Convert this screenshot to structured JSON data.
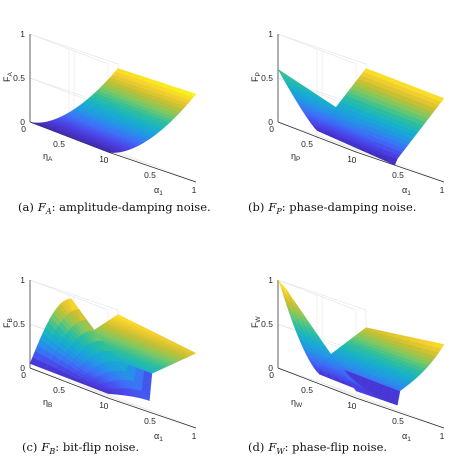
{
  "panels": [
    {
      "id": "a",
      "caption": {
        "tag": "(a)",
        "sym": "F",
        "sub": "A",
        "text": ":  amplitude-damping noise."
      },
      "zlabel": {
        "main": "F",
        "sub": "A"
      },
      "eta_label": {
        "main": "η",
        "sub": "A"
      },
      "alpha_label": {
        "main": "α",
        "sub": "1"
      },
      "z_ticks": [
        "0",
        "0.5",
        "1"
      ],
      "eta_ticks": [
        "0",
        "0.5",
        "1"
      ],
      "alpha_ticks": [
        "0",
        "0.5",
        "1"
      ]
    },
    {
      "id": "b",
      "caption": {
        "tag": "(b)",
        "sym": "F",
        "sub": "P",
        "text": ":  phase-damping noise."
      },
      "zlabel": {
        "main": "F",
        "sub": "P"
      },
      "eta_label": {
        "main": "η",
        "sub": "P"
      },
      "alpha_label": {
        "main": "α",
        "sub": "1"
      },
      "z_ticks": [
        "0",
        "0.5",
        "1"
      ],
      "eta_ticks": [
        "0",
        "0.5",
        "1"
      ],
      "alpha_ticks": [
        "0",
        "0.5",
        "1"
      ]
    },
    {
      "id": "c",
      "caption": {
        "tag": "(c)",
        "sym": "F",
        "sub": "B",
        "text": ":  bit-flip noise."
      },
      "zlabel": {
        "main": "F",
        "sub": "B"
      },
      "eta_label": {
        "main": "η",
        "sub": "B"
      },
      "alpha_label": {
        "main": "α",
        "sub": "1"
      },
      "z_ticks": [
        "0",
        "0.5",
        "1"
      ],
      "eta_ticks": [
        "0",
        "0.5",
        "1"
      ],
      "alpha_ticks": [
        "0",
        "0.5",
        "1"
      ]
    },
    {
      "id": "d",
      "caption": {
        "tag": "(d)",
        "sym": "F",
        "sub": "W",
        "text": ":  phase-flip noise."
      },
      "zlabel": {
        "main": "F",
        "sub": "W"
      },
      "eta_label": {
        "main": "η",
        "sub": "W"
      },
      "alpha_label": {
        "main": "α",
        "sub": "1"
      },
      "z_ticks": [
        "0",
        "0.5",
        "1"
      ],
      "eta_ticks": [
        "0",
        "0.5",
        "1"
      ],
      "alpha_ticks": [
        "0",
        "0.5",
        "1"
      ]
    }
  ],
  "colormap": [
    "#3e26a8",
    "#4a3fe6",
    "#3d6ef7",
    "#2196e6",
    "#15b0c9",
    "#2ebf9b",
    "#7cc863",
    "#c6bf30",
    "#f7cf2e",
    "#f9fb15"
  ]
}
